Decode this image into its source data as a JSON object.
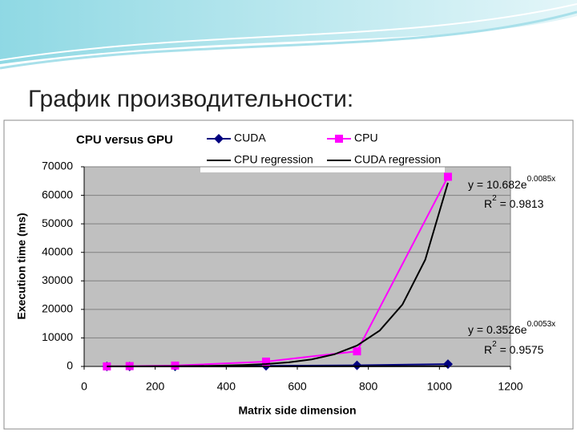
{
  "slide_title": "График производительности:",
  "chart_data": {
    "type": "line",
    "title": "CPU versus GPU",
    "x_label": "Matrix side dimension",
    "y_label": "Execution time (ms)",
    "xlim": [
      0,
      1200
    ],
    "xticks": [
      0,
      200,
      400,
      600,
      800,
      1000,
      1200
    ],
    "ylim": [
      0,
      70000
    ],
    "yticks": [
      0,
      10000,
      20000,
      30000,
      40000,
      50000,
      60000,
      70000
    ],
    "series": [
      {
        "name": "CUDA",
        "color": "#000080",
        "marker": "diamond",
        "x": [
          64,
          128,
          256,
          512,
          768,
          1024
        ],
        "values": [
          5,
          10,
          40,
          200,
          400,
          800
        ]
      },
      {
        "name": "CPU",
        "color": "#ff00ff",
        "marker": "square",
        "x": [
          64,
          128,
          256,
          512,
          768,
          1024
        ],
        "values": [
          20,
          120,
          300,
          1700,
          5300,
          66500
        ]
      },
      {
        "name": "CPU regression",
        "color": "#000000",
        "marker": "none",
        "x": [
          64,
          128,
          192,
          256,
          320,
          384,
          448,
          512,
          576,
          640,
          704,
          768,
          832,
          896,
          960,
          1024
        ],
        "values": [
          18.4,
          31.7,
          54.7,
          94.2,
          162,
          280,
          482,
          830,
          1430,
          2465,
          4245,
          7315,
          12600,
          21720,
          37390,
          64400
        ]
      },
      {
        "name": "CUDA regression",
        "color": "#000000",
        "marker": "none",
        "x": [
          64,
          512,
          1024
        ],
        "values": [
          0.5,
          5.3,
          80
        ]
      }
    ],
    "annotations": [
      {
        "text": "y = 10.682e",
        "sup": "0.0085x"
      },
      {
        "text": "R",
        "sup": "2",
        "tail": " = 0.9813"
      },
      {
        "text": "y = 0.3526e",
        "sup": "0.0053x"
      },
      {
        "text": "R",
        "sup": "2",
        "tail": " = 0.9575"
      }
    ]
  }
}
